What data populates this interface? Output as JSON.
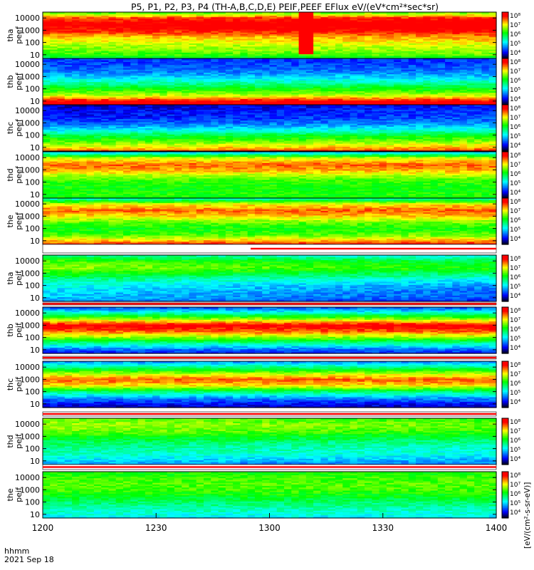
{
  "chart_data": {
    "type": "heatmap",
    "title": "P5, P1, P2, P3, P4 (TH-A,B,C,D,E) PEIF,PEEF EFlux eV/(eV*cm²*sec*sr)",
    "x_axis": {
      "ticks": [
        "1200",
        "1230",
        "1300",
        "1330",
        "1400"
      ],
      "corner_label_1": "hhmm",
      "corner_label_2": "2021 Sep 18"
    },
    "y_axis": {
      "scale": "log",
      "range": [
        5,
        30000
      ],
      "ticks": [
        {
          "value": 10,
          "label": "10"
        },
        {
          "value": 100,
          "label": "100"
        },
        {
          "value": 1000,
          "label": "1000"
        },
        {
          "value": 10000,
          "label": "10000"
        }
      ]
    },
    "colorbar_labels": [
      "10⁴",
      "10⁵",
      "10⁶",
      "10⁷",
      "10⁸"
    ],
    "colorbar_units": "[eV/(cm²-s-sr-eV)]",
    "colors": {
      "lo": "#000000",
      "blue": "#0000ff",
      "cyan": "#00ffff",
      "green": "#00ff00",
      "yellow": "#ffff00",
      "red": "#ff0000",
      "hi": "#ffffff"
    },
    "panels": [
      {
        "probe": "tha",
        "product": "peef",
        "label_1": "tha",
        "label_2": "peef",
        "profile": [
          [
            5,
            0.48
          ],
          [
            10,
            0.6
          ],
          [
            30,
            0.66
          ],
          [
            100,
            0.72
          ],
          [
            300,
            0.8
          ],
          [
            1000,
            0.92
          ],
          [
            3000,
            0.98
          ],
          [
            10000,
            0.9
          ],
          [
            30000,
            0.6
          ]
        ],
        "time_trend": 0.04,
        "band": {
          "from": 0.56,
          "to": 0.6,
          "level": 0.92
        }
      },
      {
        "probe": "thb",
        "product": "peef",
        "label_1": "thb",
        "label_2": "peef",
        "profile": [
          [
            5,
            0.96
          ],
          [
            10,
            0.95
          ],
          [
            15,
            0.86
          ],
          [
            30,
            0.7
          ],
          [
            100,
            0.56
          ],
          [
            300,
            0.44
          ],
          [
            1000,
            0.32
          ],
          [
            3000,
            0.24
          ],
          [
            10000,
            0.2
          ],
          [
            30000,
            0.18
          ]
        ],
        "time_trend": 0.0,
        "band": null
      },
      {
        "probe": "thc",
        "product": "peef",
        "label_1": "thc",
        "label_2": "peef",
        "profile": [
          [
            5,
            0.88
          ],
          [
            10,
            0.78
          ],
          [
            30,
            0.64
          ],
          [
            100,
            0.52
          ],
          [
            300,
            0.36
          ],
          [
            1000,
            0.24
          ],
          [
            3000,
            0.18
          ],
          [
            10000,
            0.16
          ],
          [
            30000,
            0.12
          ]
        ],
        "time_trend": 0.05,
        "band": null
      },
      {
        "probe": "thd",
        "product": "peef",
        "label_1": "thd",
        "label_2": "peef",
        "profile": [
          [
            5,
            0.55
          ],
          [
            10,
            0.58
          ],
          [
            30,
            0.56
          ],
          [
            100,
            0.58
          ],
          [
            300,
            0.66
          ],
          [
            1000,
            0.8
          ],
          [
            3000,
            0.86
          ],
          [
            10000,
            0.7
          ],
          [
            30000,
            0.3
          ]
        ],
        "time_trend": 0.0,
        "band": null
      },
      {
        "probe": "the",
        "product": "peef",
        "label_1": "the",
        "label_2": "peef",
        "profile": [
          [
            5,
            0.92
          ],
          [
            10,
            0.8
          ],
          [
            30,
            0.62
          ],
          [
            100,
            0.56
          ],
          [
            300,
            0.62
          ],
          [
            1000,
            0.76
          ],
          [
            3000,
            0.86
          ],
          [
            10000,
            0.74
          ],
          [
            30000,
            0.4
          ]
        ],
        "time_trend": 0.03,
        "band": null
      },
      {
        "probe": "tha",
        "product": "peif",
        "label_1": "tha",
        "label_2": "peif",
        "profile": [
          [
            5,
            0.2
          ],
          [
            10,
            0.26
          ],
          [
            30,
            0.28
          ],
          [
            100,
            0.32
          ],
          [
            300,
            0.4
          ],
          [
            1000,
            0.52
          ],
          [
            3000,
            0.62
          ],
          [
            10000,
            0.56
          ],
          [
            30000,
            0.4
          ]
        ],
        "time_trend": -0.1,
        "band": null
      },
      {
        "probe": "thb",
        "product": "peif",
        "label_1": "thb",
        "label_2": "peif",
        "profile": [
          [
            5,
            0.16
          ],
          [
            10,
            0.22
          ],
          [
            30,
            0.4
          ],
          [
            100,
            0.64
          ],
          [
            300,
            0.84
          ],
          [
            1000,
            0.96
          ],
          [
            3000,
            0.7
          ],
          [
            10000,
            0.42
          ],
          [
            30000,
            0.2
          ]
        ],
        "time_trend": 0.0,
        "band": null
      },
      {
        "probe": "thc",
        "product": "peif",
        "label_1": "thc",
        "label_2": "peif",
        "profile": [
          [
            5,
            0.1
          ],
          [
            10,
            0.14
          ],
          [
            30,
            0.26
          ],
          [
            100,
            0.46
          ],
          [
            300,
            0.74
          ],
          [
            1000,
            0.86
          ],
          [
            3000,
            0.7
          ],
          [
            10000,
            0.46
          ],
          [
            30000,
            0.26
          ]
        ],
        "time_trend": 0.0,
        "band": null
      },
      {
        "probe": "thd",
        "product": "peif",
        "label_1": "thd",
        "label_2": "peif",
        "profile": [
          [
            5,
            0.24
          ],
          [
            10,
            0.3
          ],
          [
            30,
            0.38
          ],
          [
            100,
            0.42
          ],
          [
            300,
            0.46
          ],
          [
            1000,
            0.54
          ],
          [
            3000,
            0.62
          ],
          [
            10000,
            0.66
          ],
          [
            30000,
            0.6
          ]
        ],
        "time_trend": -0.05,
        "band": null
      },
      {
        "probe": "the",
        "product": "peif",
        "label_1": "the",
        "label_2": "peif",
        "profile": [
          [
            5,
            0.34
          ],
          [
            10,
            0.38
          ],
          [
            30,
            0.42
          ],
          [
            100,
            0.48
          ],
          [
            300,
            0.54
          ],
          [
            1000,
            0.6
          ],
          [
            3000,
            0.62
          ],
          [
            10000,
            0.6
          ],
          [
            30000,
            0.56
          ]
        ],
        "time_trend": 0.0,
        "band": null
      }
    ]
  }
}
